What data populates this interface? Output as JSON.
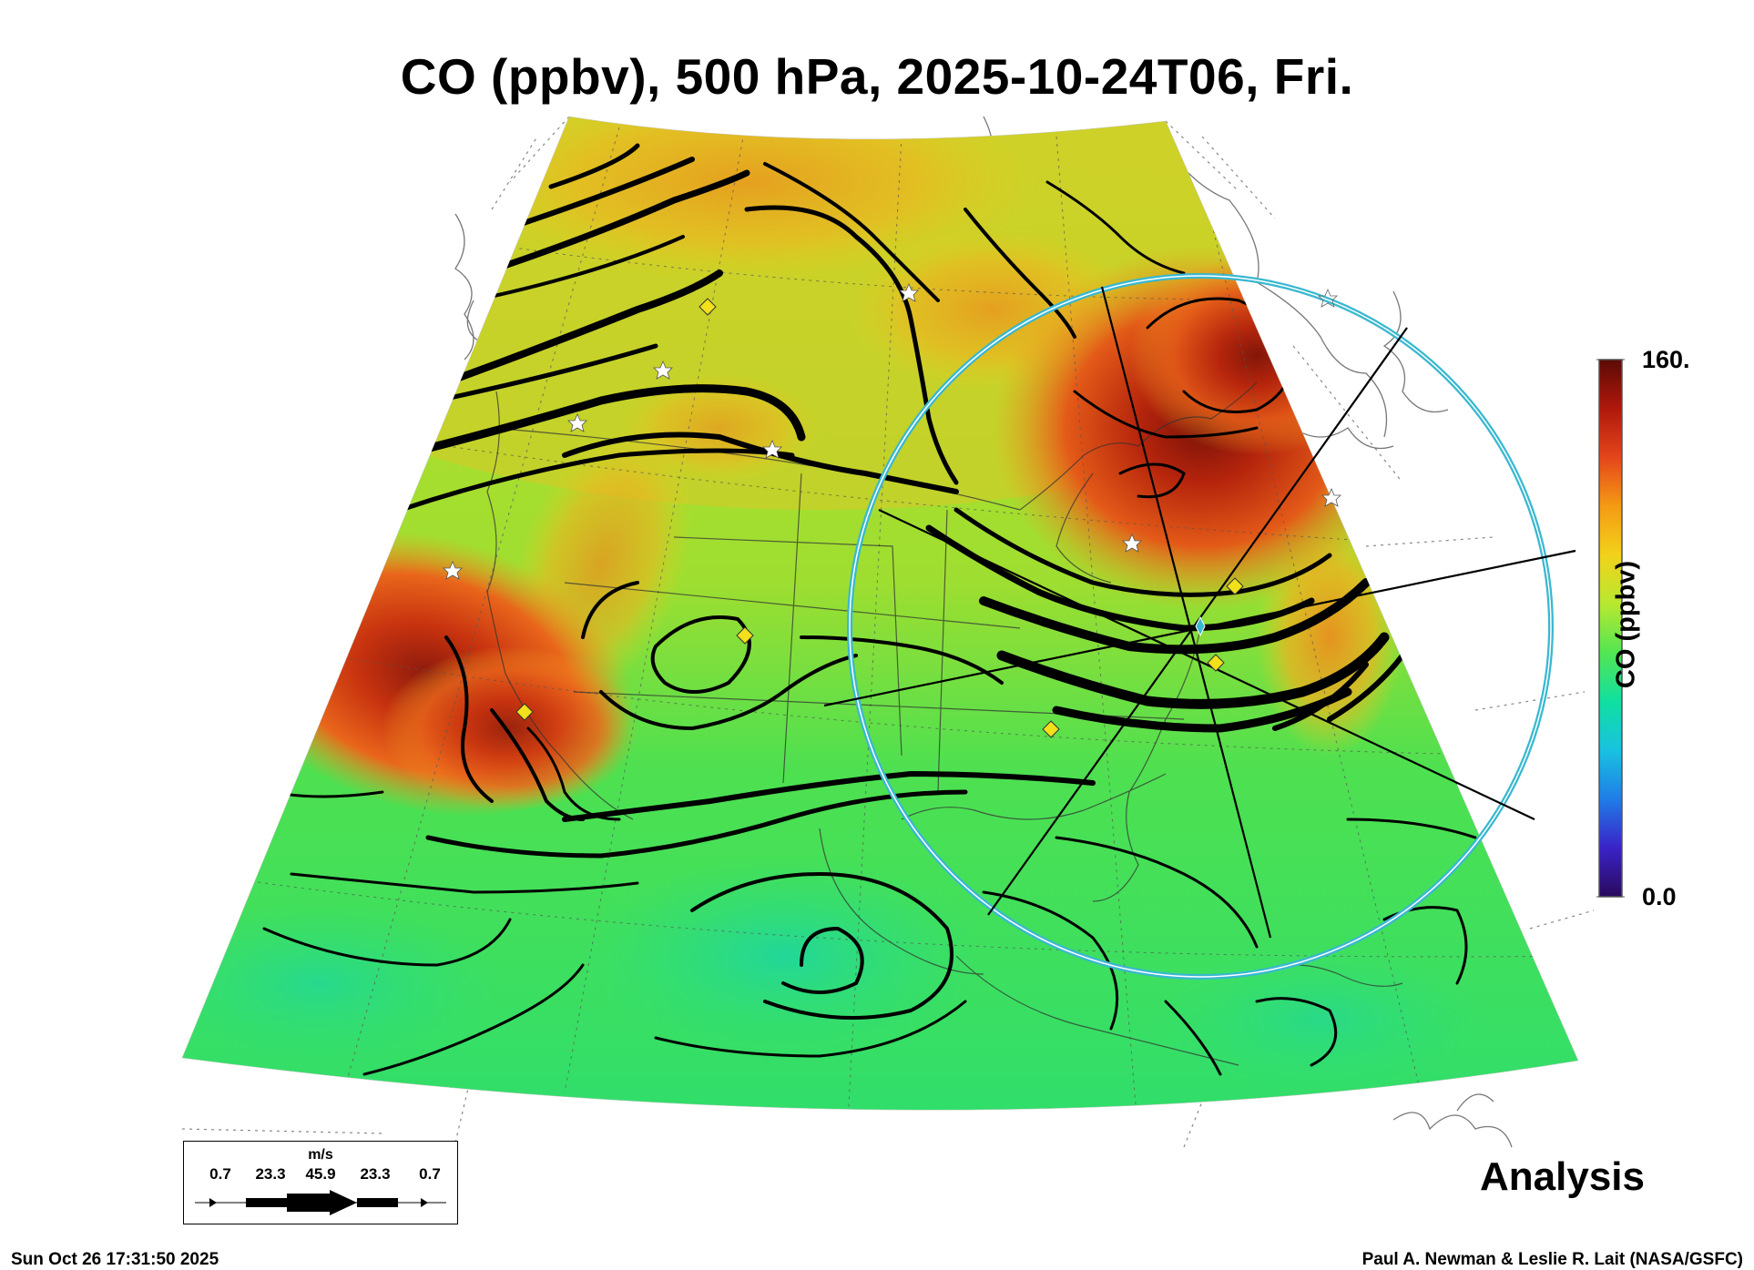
{
  "title": "CO (ppbv), 500 hPa, 2025-10-24T06, Fri.",
  "colorbar": {
    "label": "CO (ppbv)",
    "max_label": "160.",
    "min_label": "0.0",
    "min": 0,
    "max": 160,
    "colors": [
      "#2a0a5e",
      "#3a22c8",
      "#1f7de8",
      "#18c2e0",
      "#10e0a0",
      "#52e652",
      "#b8e830",
      "#f2d21a",
      "#f59a14",
      "#e5451a",
      "#b0180c",
      "#5c0a06"
    ]
  },
  "wind_legend": {
    "unit": "m/s",
    "values": [
      "0.7",
      "23.3",
      "45.9",
      "23.3",
      "0.7"
    ]
  },
  "analysis_label": "Analysis",
  "timestamp": "Sun Oct 26 17:31:50 2025",
  "credit": "Paul A. Newman & Leslie R. Lait (NASA/GSFC)",
  "markers": {
    "stars": "white-star-icon",
    "diamonds": "yellow-diamond-icon",
    "range_circle_color": "#39b8d0",
    "center_marker_color": "#39b8d0"
  }
}
